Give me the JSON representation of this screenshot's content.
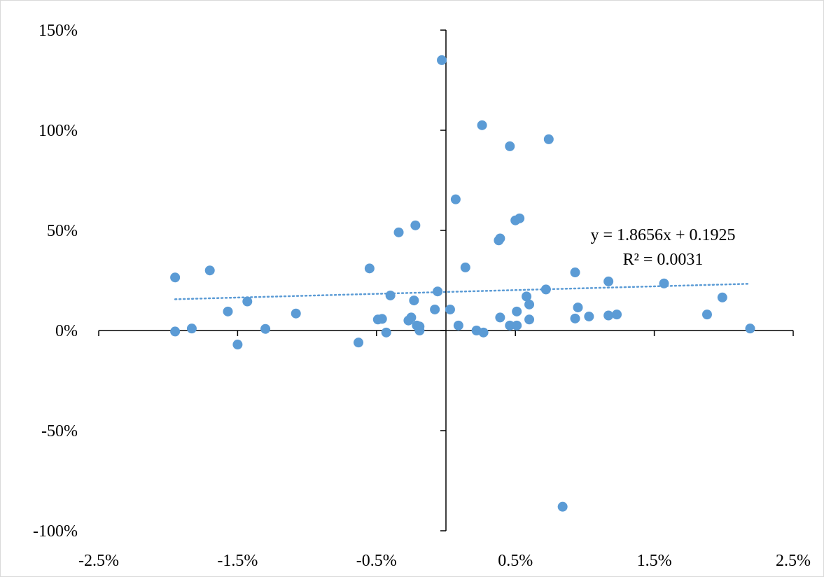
{
  "chart_data": {
    "type": "scatter",
    "title": "",
    "xlabel": "",
    "ylabel": "",
    "xlim": [
      -0.025,
      0.025
    ],
    "ylim": [
      -1.0,
      1.5
    ],
    "x_ticks": [
      -0.025,
      -0.015,
      -0.005,
      0.005,
      0.015,
      0.025
    ],
    "x_tick_labels": [
      "-2.5%",
      "-1.5%",
      "-0.5%",
      "0.5%",
      "1.5%",
      "2.5%"
    ],
    "y_ticks": [
      1.5,
      1.0,
      0.5,
      0.0,
      -0.5,
      -1.0
    ],
    "y_tick_labels": [
      "150%",
      "100%",
      "50%",
      "0%",
      "-50%",
      "-100%"
    ],
    "grid": false,
    "legend": "none",
    "colors": {
      "marker": "#5b9bd5",
      "trendline": "#5b9bd5",
      "axis": "#000000",
      "border": "#d9d9d9"
    },
    "series": [
      {
        "points": [
          {
            "x": -0.0195,
            "y": 0.265
          },
          {
            "x": -0.0195,
            "y": -0.005
          },
          {
            "x": -0.0183,
            "y": 0.01
          },
          {
            "x": -0.017,
            "y": 0.3
          },
          {
            "x": -0.0157,
            "y": 0.095
          },
          {
            "x": -0.015,
            "y": -0.07
          },
          {
            "x": -0.0143,
            "y": 0.145
          },
          {
            "x": -0.013,
            "y": 0.008
          },
          {
            "x": -0.0108,
            "y": 0.085
          },
          {
            "x": -0.0063,
            "y": -0.06
          },
          {
            "x": -0.0055,
            "y": 0.31
          },
          {
            "x": -0.0049,
            "y": 0.055
          },
          {
            "x": -0.0046,
            "y": 0.058
          },
          {
            "x": -0.0043,
            "y": -0.01
          },
          {
            "x": -0.004,
            "y": 0.175
          },
          {
            "x": -0.0034,
            "y": 0.49
          },
          {
            "x": -0.0027,
            "y": 0.05
          },
          {
            "x": -0.0025,
            "y": 0.065
          },
          {
            "x": -0.0023,
            "y": 0.15
          },
          {
            "x": -0.0022,
            "y": 0.525
          },
          {
            "x": -0.0021,
            "y": 0.025
          },
          {
            "x": -0.0019,
            "y": 0.02
          },
          {
            "x": -0.0019,
            "y": 0.0
          },
          {
            "x": -0.0008,
            "y": 0.105
          },
          {
            "x": -0.0006,
            "y": 0.195
          },
          {
            "x": -0.0003,
            "y": 1.35
          },
          {
            "x": 0.0003,
            "y": 0.105
          },
          {
            "x": 0.0007,
            "y": 0.655
          },
          {
            "x": 0.0009,
            "y": 0.025
          },
          {
            "x": 0.0014,
            "y": 0.315
          },
          {
            "x": 0.0022,
            "y": 0.0
          },
          {
            "x": 0.0026,
            "y": 1.025
          },
          {
            "x": 0.0027,
            "y": -0.01
          },
          {
            "x": 0.0038,
            "y": 0.45
          },
          {
            "x": 0.0039,
            "y": 0.46
          },
          {
            "x": 0.0039,
            "y": 0.065
          },
          {
            "x": 0.0046,
            "y": 0.92
          },
          {
            "x": 0.0046,
            "y": 0.025
          },
          {
            "x": 0.005,
            "y": 0.55
          },
          {
            "x": 0.0051,
            "y": 0.095
          },
          {
            "x": 0.0051,
            "y": 0.025
          },
          {
            "x": 0.0053,
            "y": 0.56
          },
          {
            "x": 0.0058,
            "y": 0.17
          },
          {
            "x": 0.006,
            "y": 0.13
          },
          {
            "x": 0.006,
            "y": 0.055
          },
          {
            "x": 0.0072,
            "y": 0.205
          },
          {
            "x": 0.0074,
            "y": 0.955
          },
          {
            "x": 0.0084,
            "y": -0.88
          },
          {
            "x": 0.0093,
            "y": 0.29
          },
          {
            "x": 0.0093,
            "y": 0.06
          },
          {
            "x": 0.0095,
            "y": 0.115
          },
          {
            "x": 0.0103,
            "y": 0.07
          },
          {
            "x": 0.0117,
            "y": 0.245
          },
          {
            "x": 0.0117,
            "y": 0.075
          },
          {
            "x": 0.0123,
            "y": 0.08
          },
          {
            "x": 0.0157,
            "y": 0.235
          },
          {
            "x": 0.0188,
            "y": 0.08
          },
          {
            "x": 0.0199,
            "y": 0.165
          },
          {
            "x": 0.0219,
            "y": 0.01
          }
        ]
      }
    ],
    "trendline": {
      "type": "linear",
      "slope": 1.8656,
      "intercept": 0.1925,
      "x_range": [
        -0.0195,
        0.0219
      ],
      "equation_label": "y = 1.8656x + 0.1925",
      "r2_label": "R² = 0.0031"
    }
  }
}
